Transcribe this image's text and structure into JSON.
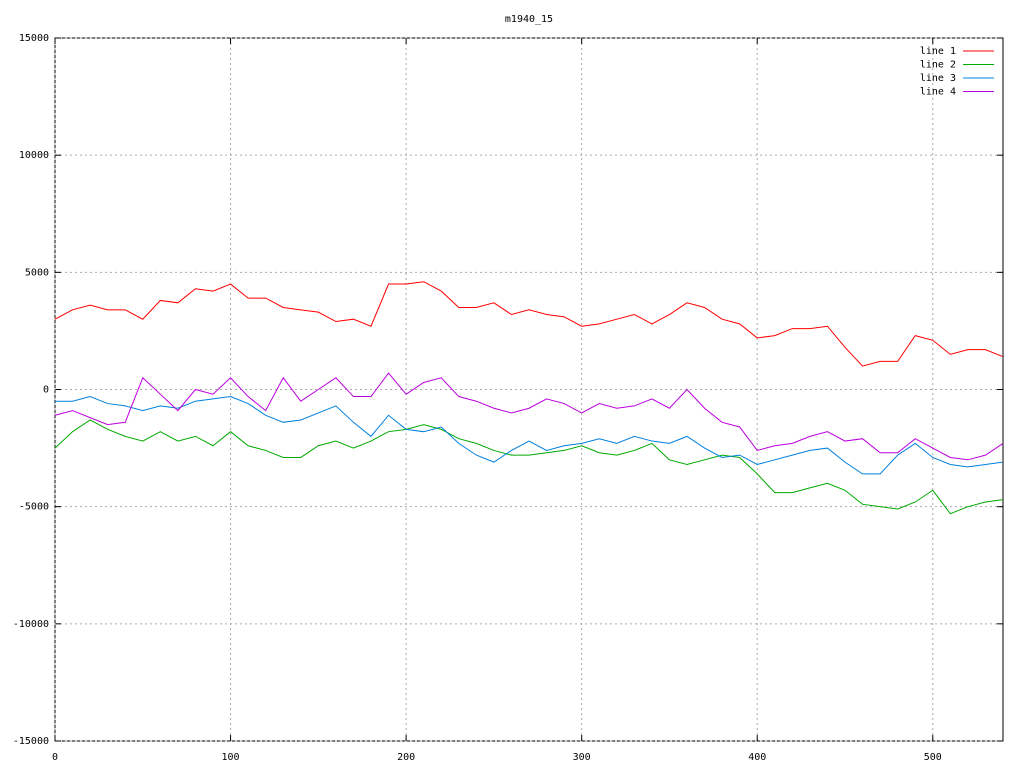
{
  "chart_data": {
    "type": "line",
    "title": "m1940_15",
    "x": [
      0,
      10,
      20,
      30,
      40,
      50,
      60,
      70,
      80,
      90,
      100,
      110,
      120,
      130,
      140,
      150,
      160,
      170,
      180,
      190,
      200,
      210,
      220,
      230,
      240,
      250,
      260,
      270,
      280,
      290,
      300,
      310,
      320,
      330,
      340,
      350,
      360,
      370,
      380,
      390,
      400,
      410,
      420,
      430,
      440,
      450,
      460,
      470,
      480,
      490,
      500,
      510,
      520,
      530,
      540
    ],
    "series": [
      {
        "name": "line 1",
        "color": "#ff0000",
        "values": [
          3000,
          3400,
          3600,
          3400,
          3400,
          3000,
          3800,
          3700,
          4300,
          4200,
          4500,
          3900,
          3900,
          3500,
          3400,
          3300,
          2900,
          3000,
          2700,
          4500,
          4500,
          4600,
          4200,
          3500,
          3500,
          3700,
          3200,
          3400,
          3200,
          3100,
          2700,
          2800,
          3000,
          3200,
          2800,
          3200,
          3700,
          3500,
          3000,
          2800,
          2200,
          2300,
          2600,
          2600,
          2700,
          1800,
          1000,
          1200,
          1200,
          2300,
          2100,
          1500,
          1700,
          1700,
          1400
        ]
      },
      {
        "name": "line 2",
        "color": "#00aa00",
        "values": [
          -2500,
          -1800,
          -1300,
          -1700,
          -2000,
          -2200,
          -1800,
          -2200,
          -2000,
          -2400,
          -1800,
          -2400,
          -2600,
          -2900,
          -2900,
          -2400,
          -2200,
          -2500,
          -2200,
          -1800,
          -1700,
          -1500,
          -1700,
          -2100,
          -2300,
          -2600,
          -2800,
          -2800,
          -2700,
          -2600,
          -2400,
          -2700,
          -2800,
          -2600,
          -2300,
          -3000,
          -3200,
          -3000,
          -2800,
          -2900,
          -3600,
          -4400,
          -4400,
          -4200,
          -4000,
          -4300,
          -4900,
          -5000,
          -5100,
          -4800,
          -4300,
          -5300,
          -5000,
          -4800,
          -4700
        ]
      },
      {
        "name": "line 3",
        "color": "#0080dd",
        "values": [
          -500,
          -500,
          -300,
          -600,
          -700,
          -900,
          -700,
          -800,
          -500,
          -400,
          -300,
          -600,
          -1100,
          -1400,
          -1300,
          -1000,
          -700,
          -1400,
          -2000,
          -1100,
          -1700,
          -1800,
          -1600,
          -2300,
          -2800,
          -3100,
          -2600,
          -2200,
          -2600,
          -2400,
          -2300,
          -2100,
          -2300,
          -2000,
          -2200,
          -2300,
          -2000,
          -2500,
          -2900,
          -2800,
          -3200,
          -3000,
          -2800,
          -2600,
          -2500,
          -3100,
          -3600,
          -3600,
          -2800,
          -2300,
          -2900,
          -3200,
          -3300,
          -3200,
          -3100
        ]
      },
      {
        "name": "line 4",
        "color": "#bb00dd",
        "values": [
          -1100,
          -900,
          -1200,
          -1500,
          -1400,
          500,
          -200,
          -900,
          0,
          -200,
          500,
          -300,
          -900,
          500,
          -500,
          0,
          500,
          -300,
          -300,
          700,
          -200,
          300,
          500,
          -300,
          -500,
          -800,
          -1000,
          -800,
          -400,
          -600,
          -1000,
          -600,
          -800,
          -700,
          -400,
          -800,
          0,
          -800,
          -1400,
          -1600,
          -2600,
          -2400,
          -2300,
          -2000,
          -1800,
          -2200,
          -2100,
          -2700,
          -2700,
          -2100,
          -2500,
          -2900,
          -3000,
          -2800,
          -2300
        ]
      }
    ],
    "xlim": [
      0,
      540
    ],
    "xticks": [
      0,
      100,
      200,
      300,
      400,
      500
    ],
    "ylim": [
      -15000,
      15000
    ],
    "yticks": [
      -15000,
      -10000,
      -5000,
      0,
      5000,
      10000,
      15000
    ],
    "grid": true,
    "legend": "top-right"
  }
}
